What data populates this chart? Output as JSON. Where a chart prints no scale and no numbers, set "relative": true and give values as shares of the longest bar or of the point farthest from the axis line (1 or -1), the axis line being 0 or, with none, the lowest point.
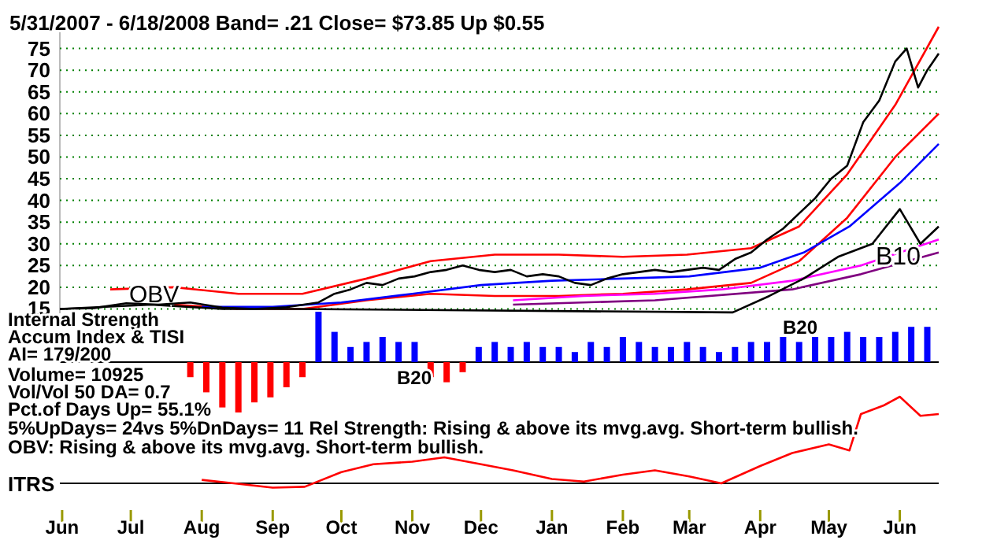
{
  "chart_data": [
    {
      "type": "line",
      "title": "5/31/2007 - 6/18/2008  Band= .21  Close= $73.85  Up $0.55",
      "xlim": [
        "2007-05-31",
        "2008-06-18"
      ],
      "ylim": [
        14,
        80
      ],
      "yticks": [
        15,
        20,
        25,
        30,
        35,
        40,
        45,
        50,
        55,
        60,
        65,
        70,
        75
      ],
      "grid": "y",
      "tick_labels": "y",
      "series": [
        {
          "color": "#ff0000",
          "x": [
            "2007-06-22",
            "2007-07-20",
            "2007-08-17",
            "2007-09-14",
            "2007-10-12",
            "2007-11-09",
            "2007-12-07",
            "2008-01-04",
            "2008-02-01",
            "2008-02-29",
            "2008-03-28",
            "2008-04-18",
            "2008-05-09",
            "2008-05-30",
            "2008-06-18"
          ],
          "values": [
            19.5,
            20,
            18.5,
            18.5,
            22,
            26,
            27.5,
            27.5,
            27,
            27.5,
            29,
            34,
            46,
            62,
            80
          ]
        },
        {
          "color": "#ff0000",
          "x": [
            "2007-07-20",
            "2007-08-17",
            "2007-09-14",
            "2007-10-12",
            "2007-11-09",
            "2007-12-07",
            "2008-01-04",
            "2008-02-01",
            "2008-02-29",
            "2008-03-28",
            "2008-04-18",
            "2008-05-09",
            "2008-05-30",
            "2008-06-18"
          ],
          "values": [
            16,
            15,
            15,
            17,
            18.5,
            18,
            18,
            18.5,
            19.5,
            21,
            26,
            36,
            50,
            60
          ]
        },
        {
          "color": "#0000ff",
          "x": [
            "2007-08-01",
            "2007-09-01",
            "2007-10-01",
            "2007-11-01",
            "2007-12-01",
            "2008-01-01",
            "2008-02-01",
            "2008-03-01",
            "2008-04-01",
            "2008-04-20",
            "2008-05-10",
            "2008-06-01",
            "2008-06-18"
          ],
          "values": [
            15.5,
            15.5,
            16.5,
            18.5,
            20.5,
            21.5,
            22,
            22.5,
            24.5,
            28,
            34,
            44,
            53
          ]
        },
        {
          "color": "#ff00ff",
          "x": [
            "2007-12-15",
            "2008-01-15",
            "2008-02-15",
            "2008-03-15",
            "2008-04-15",
            "2008-05-15",
            "2008-06-18"
          ],
          "values": [
            17,
            18,
            18.5,
            19.5,
            21.5,
            25,
            31
          ]
        },
        {
          "color": "#800080",
          "x": [
            "2007-12-15",
            "2008-02-15",
            "2008-04-15",
            "2008-05-15",
            "2008-06-18"
          ],
          "values": [
            16,
            17,
            19.5,
            23,
            28
          ]
        },
        {
          "name": "OBV",
          "color": "#000000",
          "x": [
            "2007-05-31",
            "2007-06-20",
            "2007-07-10",
            "2007-08-10",
            "2007-09-10",
            "2008-03-20",
            "2008-04-05",
            "2008-04-20",
            "2008-05-05",
            "2008-05-20",
            "2008-06-01",
            "2008-06-10",
            "2008-06-18"
          ],
          "values": [
            15,
            15.5,
            16,
            15,
            15,
            14.2,
            18,
            22,
            27,
            30,
            38,
            30,
            34
          ]
        },
        {
          "color": "#000000",
          "x": [
            "2007-05-31",
            "2007-06-15",
            "2007-06-29",
            "2007-07-13",
            "2007-07-27",
            "2007-08-10",
            "2007-08-24",
            "2007-09-07",
            "2007-09-21",
            "2007-09-28",
            "2007-10-05",
            "2007-10-12",
            "2007-10-19",
            "2007-10-26",
            "2007-11-02",
            "2007-11-09",
            "2007-11-16",
            "2007-11-23",
            "2007-11-30",
            "2007-12-07",
            "2007-12-14",
            "2007-12-21",
            "2007-12-28",
            "2008-01-04",
            "2008-01-11",
            "2008-01-18",
            "2008-01-25",
            "2008-02-01",
            "2008-02-08",
            "2008-02-15",
            "2008-02-22",
            "2008-02-29",
            "2008-03-07",
            "2008-03-14",
            "2008-03-21",
            "2008-03-28",
            "2008-04-04",
            "2008-04-11",
            "2008-04-18",
            "2008-04-25",
            "2008-05-02",
            "2008-05-09",
            "2008-05-16",
            "2008-05-23",
            "2008-05-30",
            "2008-06-04",
            "2008-06-09",
            "2008-06-13",
            "2008-06-18"
          ],
          "values": [
            15,
            15.2,
            16.3,
            16,
            16.5,
            15.3,
            15,
            15.4,
            16.5,
            18.5,
            19.5,
            21,
            20.5,
            22,
            22.5,
            23.5,
            24,
            25,
            24,
            23.5,
            24,
            22.5,
            23,
            22.5,
            21,
            20.5,
            22,
            23,
            23.5,
            24,
            23.5,
            24,
            24.5,
            24,
            26.5,
            28,
            31,
            33.5,
            37,
            40.5,
            45,
            48,
            58,
            63,
            72,
            75,
            66,
            70,
            73.85
          ]
        }
      ],
      "annotations": [
        "B10"
      ]
    },
    {
      "type": "bar",
      "relative": true,
      "tick_labels": false,
      "xlim": [
        "2007-05-31",
        "2008-06-18"
      ],
      "x": [
        "2007-07-27",
        "2007-08-03",
        "2007-08-10",
        "2007-08-17",
        "2007-08-24",
        "2007-08-31",
        "2007-09-07",
        "2007-09-14",
        "2007-09-21",
        "2007-09-28",
        "2007-10-05",
        "2007-10-12",
        "2007-10-19",
        "2007-10-26",
        "2007-11-02",
        "2007-11-09",
        "2007-11-16",
        "2007-11-23",
        "2007-11-30",
        "2007-12-07",
        "2007-12-14",
        "2007-12-21",
        "2007-12-28",
        "2008-01-04",
        "2008-01-11",
        "2008-01-18",
        "2008-01-25",
        "2008-02-01",
        "2008-02-08",
        "2008-02-15",
        "2008-02-22",
        "2008-02-29",
        "2008-03-07",
        "2008-03-14",
        "2008-03-21",
        "2008-03-28",
        "2008-04-04",
        "2008-04-11",
        "2008-04-18",
        "2008-04-25",
        "2008-05-02",
        "2008-05-09",
        "2008-05-16",
        "2008-05-23",
        "2008-05-30",
        "2008-06-06",
        "2008-06-13"
      ],
      "values": [
        -0.3,
        -0.6,
        -0.9,
        -1.0,
        -0.8,
        -0.7,
        -0.5,
        -0.3,
        1.0,
        0.6,
        0.3,
        0.4,
        0.5,
        0.4,
        0.4,
        -0.3,
        -0.4,
        -0.2,
        0.3,
        0.4,
        0.3,
        0.4,
        0.3,
        0.3,
        0.2,
        0.4,
        0.3,
        0.5,
        0.4,
        0.3,
        0.3,
        0.4,
        0.3,
        0.2,
        0.3,
        0.4,
        0.4,
        0.5,
        0.4,
        0.5,
        0.5,
        0.6,
        0.5,
        0.5,
        0.6,
        0.7,
        0.7
      ],
      "colors": [
        "#ff0000",
        "#ff0000",
        "#ff0000",
        "#ff0000",
        "#ff0000",
        "#ff0000",
        "#ff0000",
        "#ff0000",
        "#0000ff",
        "#0000ff",
        "#0000ff",
        "#0000ff",
        "#0000ff",
        "#0000ff",
        "#0000ff",
        "#ff0000",
        "#ff0000",
        "#ff0000",
        "#0000ff",
        "#0000ff",
        "#0000ff",
        "#0000ff",
        "#0000ff",
        "#0000ff",
        "#0000ff",
        "#0000ff",
        "#0000ff",
        "#0000ff",
        "#0000ff",
        "#0000ff",
        "#0000ff",
        "#0000ff",
        "#0000ff",
        "#0000ff",
        "#0000ff",
        "#0000ff",
        "#0000ff",
        "#0000ff",
        "#0000ff",
        "#0000ff",
        "#0000ff",
        "#0000ff",
        "#0000ff",
        "#0000ff",
        "#0000ff",
        "#0000ff",
        "#0000ff"
      ],
      "annotations": [
        "Internal Strength",
        "Accum Index & TISI",
        "AI= 179/200",
        "Volume= 10925",
        "Vol/Vol 50 DA= 0.7",
        "Pct.of Days Up= 55.1%",
        "B20",
        "B20"
      ]
    },
    {
      "type": "line",
      "relative": true,
      "tick_labels": "x",
      "ylabel": "ITRS",
      "xlim": [
        "2007-05-31",
        "2008-06-18"
      ],
      "xticks": [
        {
          "value": "2007-06-01",
          "label": "Jun"
        },
        {
          "value": "2007-07-01",
          "label": "Jul"
        },
        {
          "value": "2007-08-01",
          "label": "Aug"
        },
        {
          "value": "2007-09-01",
          "label": "Sep"
        },
        {
          "value": "2007-10-01",
          "label": "Oct"
        },
        {
          "value": "2007-11-01",
          "label": "Nov"
        },
        {
          "value": "2007-12-01",
          "label": "Dec"
        },
        {
          "value": "2008-01-01",
          "label": "Jan"
        },
        {
          "value": "2008-02-01",
          "label": "Feb"
        },
        {
          "value": "2008-03-01",
          "label": "Mar"
        },
        {
          "value": "2008-04-01",
          "label": "Apr"
        },
        {
          "value": "2008-05-01",
          "label": "May"
        },
        {
          "value": "2008-06-01",
          "label": "Jun"
        }
      ],
      "series": [
        {
          "color": "#ff0000",
          "x": [
            "2007-08-01",
            "2007-08-15",
            "2007-09-01",
            "2007-09-15",
            "2007-10-01",
            "2007-10-15",
            "2007-11-01",
            "2007-11-15",
            "2007-12-01",
            "2007-12-15",
            "2008-01-01",
            "2008-01-15",
            "2008-02-01",
            "2008-02-15",
            "2008-03-01",
            "2008-03-15",
            "2008-04-01",
            "2008-04-15",
            "2008-05-01",
            "2008-05-10",
            "2008-05-15",
            "2008-05-25",
            "2008-06-01",
            "2008-06-10",
            "2008-06-18"
          ],
          "values": [
            0.04,
            0,
            -0.05,
            -0.04,
            0.13,
            0.22,
            0.25,
            0.3,
            0.22,
            0.15,
            0.05,
            0.02,
            0.1,
            0.15,
            0.08,
            0,
            0.2,
            0.35,
            0.45,
            0.38,
            0.8,
            0.9,
            1,
            0.78,
            0.8
          ]
        }
      ],
      "annotations": [
        "5%UpDays= 24vs 5%DnDays= 11   Rel Strength: Rising & above its mvg.avg. Short-term bullish.",
        "OBV: Rising & above its mvg.avg. Short-term bullish."
      ]
    }
  ]
}
